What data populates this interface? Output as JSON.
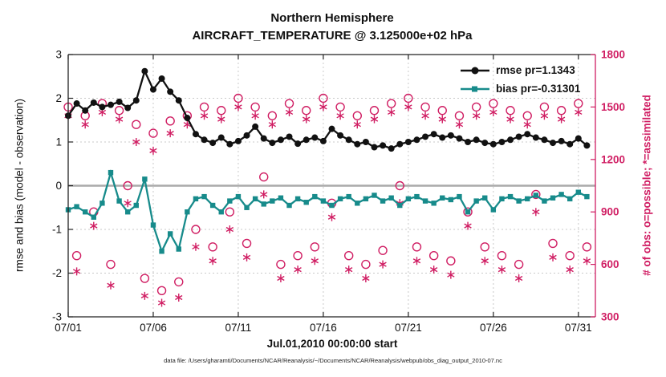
{
  "footer_note": "data file: /Users/gharamti/Documents/NCAR/Reanalysis/~/Documents/NCAR/Reanalysis/webpub/obs_diag_output_2010-07.nc",
  "chart_data": {
    "type": "line",
    "title": "Northern Hemisphere",
    "subtitle": "AIRCRAFT_TEMPERATURE @ 3.125000e+02 hPa",
    "xlabel": "Jul.01,2010 00:00:00 start",
    "ylabel_left": "rmse and bias (model - observation)",
    "ylabel_right": "# of obs: o=possible; *=assimilated",
    "ylim_left": [
      -3,
      3
    ],
    "yticks_left": [
      3,
      2,
      1,
      0,
      -1,
      -2,
      -3
    ],
    "ylim_right": [
      300,
      1800
    ],
    "yticks_right": [
      1800,
      1500,
      1200,
      900,
      600,
      300
    ],
    "xlim_days": [
      0,
      31
    ],
    "x_start_day": 0,
    "x_step_days": 0.5,
    "xticks": [
      {
        "day": 0,
        "label": "07/01"
      },
      {
        "day": 5,
        "label": "07/06"
      },
      {
        "day": 10,
        "label": "07/11"
      },
      {
        "day": 15,
        "label": "07/16"
      },
      {
        "day": 20,
        "label": "07/21"
      },
      {
        "day": 25,
        "label": "07/26"
      },
      {
        "day": 30,
        "label": "07/31"
      }
    ],
    "grid": true,
    "legend_position": "top-right-inside",
    "legend": [
      {
        "series": "rmse",
        "label": "rmse pr=1.1343"
      },
      {
        "series": "bias",
        "label": "bias pr=-0.31301"
      }
    ],
    "colors": {
      "rmse": "#111111",
      "bias": "#178b8b",
      "obs": "#d01e63",
      "grid": "#c9c9c9",
      "zero": "#aaaaaa",
      "axis": "#222222"
    },
    "series": [
      {
        "name": "rmse",
        "axis": "left",
        "marker": "filled-circle",
        "line": true,
        "values": [
          1.6,
          1.88,
          1.72,
          1.9,
          1.8,
          1.85,
          1.92,
          1.78,
          1.95,
          2.62,
          2.2,
          2.45,
          2.15,
          1.95,
          1.55,
          1.18,
          1.05,
          0.98,
          1.1,
          0.95,
          1.02,
          1.15,
          1.35,
          1.08,
          0.98,
          1.05,
          1.12,
          0.96,
          1.05,
          1.1,
          1.02,
          1.3,
          1.15,
          1.05,
          0.95,
          1.0,
          0.88,
          0.92,
          0.85,
          0.95,
          1.0,
          1.05,
          1.12,
          1.18,
          1.1,
          1.15,
          1.08,
          1.0,
          1.05,
          0.98,
          0.95,
          1.0,
          1.05,
          1.12,
          1.18,
          1.1,
          1.05,
          0.98,
          1.02,
          0.95,
          1.08,
          0.92
        ]
      },
      {
        "name": "bias",
        "axis": "left",
        "marker": "filled-square",
        "line": true,
        "values": [
          -0.55,
          -0.48,
          -0.6,
          -0.72,
          -0.4,
          0.3,
          -0.35,
          -0.6,
          -0.45,
          0.15,
          -0.9,
          -1.5,
          -1.1,
          -1.45,
          -0.6,
          -0.3,
          -0.25,
          -0.45,
          -0.6,
          -0.35,
          -0.25,
          -0.5,
          -0.3,
          -0.42,
          -0.35,
          -0.28,
          -0.45,
          -0.3,
          -0.38,
          -0.25,
          -0.35,
          -0.45,
          -0.3,
          -0.25,
          -0.4,
          -0.3,
          -0.22,
          -0.35,
          -0.28,
          -0.45,
          -0.3,
          -0.25,
          -0.35,
          -0.4,
          -0.28,
          -0.32,
          -0.25,
          -0.6,
          -0.35,
          -0.28,
          -0.55,
          -0.3,
          -0.25,
          -0.35,
          -0.3,
          -0.22,
          -0.35,
          -0.28,
          -0.2,
          -0.3,
          -0.15,
          -0.25
        ]
      },
      {
        "name": "possible",
        "axis": "right",
        "marker": "open-circle",
        "line": false,
        "values": [
          1500,
          650,
          1450,
          900,
          1520,
          600,
          1480,
          1050,
          1400,
          520,
          1350,
          450,
          1420,
          500,
          1450,
          800,
          1500,
          700,
          1480,
          900,
          1550,
          720,
          1500,
          1100,
          1450,
          600,
          1520,
          650,
          1480,
          700,
          1550,
          950,
          1500,
          650,
          1450,
          600,
          1480,
          680,
          1520,
          1050,
          1550,
          700,
          1500,
          650,
          1480,
          620,
          1450,
          900,
          1500,
          700,
          1520,
          650,
          1480,
          600,
          1450,
          1000,
          1500,
          720,
          1480,
          650,
          1520,
          700
        ]
      },
      {
        "name": "assimilated",
        "axis": "right",
        "marker": "asterisk",
        "line": false,
        "values": [
          1450,
          560,
          1400,
          820,
          1470,
          480,
          1430,
          950,
          1300,
          420,
          1250,
          380,
          1350,
          410,
          1400,
          700,
          1450,
          620,
          1430,
          800,
          1500,
          640,
          1450,
          1000,
          1400,
          520,
          1470,
          570,
          1430,
          620,
          1500,
          870,
          1450,
          570,
          1400,
          520,
          1430,
          600,
          1470,
          950,
          1500,
          620,
          1450,
          570,
          1430,
          540,
          1400,
          820,
          1450,
          620,
          1470,
          570,
          1430,
          520,
          1400,
          900,
          1450,
          640,
          1430,
          570,
          1470,
          620
        ]
      }
    ]
  }
}
